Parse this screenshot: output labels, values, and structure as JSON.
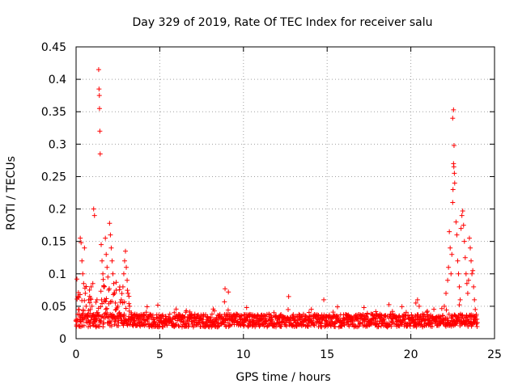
{
  "chart_data": {
    "type": "scatter",
    "title": "Day 329 of 2019, Rate Of TEC Index for receiver salu",
    "xlabel": "GPS time / hours",
    "ylabel": "ROTI / TECUs",
    "xlim": [
      0,
      25
    ],
    "ylim": [
      0,
      0.45
    ],
    "x_ticks": [
      0,
      5,
      10,
      15,
      20,
      25
    ],
    "y_ticks": [
      0,
      0.05,
      0.1,
      0.15,
      0.2,
      0.25,
      0.3,
      0.35,
      0.4,
      0.45
    ],
    "x_tick_labels": [
      "0",
      "5",
      "10",
      "15",
      "20",
      "25"
    ],
    "y_tick_labels": [
      "0",
      "0.05",
      "0.1",
      "0.15",
      "0.2",
      "0.25",
      "0.3",
      "0.35",
      "0.4",
      "0.45"
    ],
    "grid": true,
    "marker": "+",
    "color": "#ff0000",
    "series": [
      {
        "name": "ROTI",
        "points": [
          [
            0.05,
            0.092
          ],
          [
            0.1,
            0.065
          ],
          [
            0.15,
            0.045
          ],
          [
            0.2,
            0.03
          ],
          [
            0.25,
            0.155
          ],
          [
            0.3,
            0.148
          ],
          [
            0.35,
            0.12
          ],
          [
            0.4,
            0.1
          ],
          [
            0.45,
            0.085
          ],
          [
            0.5,
            0.14
          ],
          [
            0.55,
            0.07
          ],
          [
            0.6,
            0.05
          ],
          [
            0.65,
            0.035
          ],
          [
            0.7,
            0.025
          ],
          [
            0.75,
            0.06
          ],
          [
            0.8,
            0.075
          ],
          [
            0.85,
            0.045
          ],
          [
            0.9,
            0.08
          ],
          [
            0.95,
            0.05
          ],
          [
            1.0,
            0.085
          ],
          [
            1.05,
            0.2
          ],
          [
            1.1,
            0.19
          ],
          [
            1.15,
            0.03
          ],
          [
            1.2,
            0.018
          ],
          [
            1.25,
            0.06
          ],
          [
            1.3,
            0.04
          ],
          [
            1.35,
            0.415
          ],
          [
            1.37,
            0.385
          ],
          [
            1.39,
            0.375
          ],
          [
            1.4,
            0.355
          ],
          [
            1.42,
            0.32
          ],
          [
            1.44,
            0.285
          ],
          [
            1.5,
            0.145
          ],
          [
            1.55,
            0.12
          ],
          [
            1.6,
            0.1
          ],
          [
            1.65,
            0.08
          ],
          [
            1.7,
            0.06
          ],
          [
            1.75,
            0.155
          ],
          [
            1.8,
            0.13
          ],
          [
            1.85,
            0.11
          ],
          [
            1.9,
            0.095
          ],
          [
            1.95,
            0.075
          ],
          [
            2.0,
            0.178
          ],
          [
            2.05,
            0.16
          ],
          [
            2.1,
            0.14
          ],
          [
            2.15,
            0.12
          ],
          [
            2.2,
            0.1
          ],
          [
            2.25,
            0.085
          ],
          [
            2.3,
            0.07
          ],
          [
            2.35,
            0.055
          ],
          [
            2.4,
            0.045
          ],
          [
            2.45,
            0.035
          ],
          [
            2.5,
            0.05
          ],
          [
            2.6,
            0.04
          ],
          [
            2.7,
            0.06
          ],
          [
            2.8,
            0.08
          ],
          [
            2.85,
            0.1
          ],
          [
            2.9,
            0.12
          ],
          [
            2.95,
            0.135
          ],
          [
            3.0,
            0.11
          ],
          [
            3.05,
            0.09
          ],
          [
            3.1,
            0.07
          ],
          [
            3.2,
            0.05
          ],
          [
            3.3,
            0.04
          ],
          [
            8.9,
            0.077
          ],
          [
            9.1,
            0.072
          ],
          [
            12.7,
            0.065
          ],
          [
            14.8,
            0.06
          ],
          [
            17.2,
            0.048
          ],
          [
            18.9,
            0.042
          ],
          [
            20.3,
            0.055
          ],
          [
            20.4,
            0.06
          ],
          [
            20.5,
            0.05
          ],
          [
            22.0,
            0.05
          ],
          [
            22.1,
            0.07
          ],
          [
            22.2,
            0.09
          ],
          [
            22.25,
            0.11
          ],
          [
            22.3,
            0.165
          ],
          [
            22.35,
            0.14
          ],
          [
            22.4,
            0.1
          ],
          [
            22.45,
            0.13
          ],
          [
            22.5,
            0.21
          ],
          [
            22.52,
            0.23
          ],
          [
            22.55,
            0.27
          ],
          [
            22.57,
            0.265
          ],
          [
            22.6,
            0.255
          ],
          [
            22.62,
            0.24
          ],
          [
            22.58,
            0.298
          ],
          [
            22.5,
            0.34
          ],
          [
            22.55,
            0.353
          ],
          [
            22.7,
            0.18
          ],
          [
            22.75,
            0.16
          ],
          [
            22.8,
            0.12
          ],
          [
            22.85,
            0.1
          ],
          [
            22.9,
            0.08
          ],
          [
            22.95,
            0.06
          ],
          [
            23.0,
            0.17
          ],
          [
            23.05,
            0.19
          ],
          [
            23.1,
            0.197
          ],
          [
            23.15,
            0.175
          ],
          [
            23.2,
            0.15
          ],
          [
            23.25,
            0.125
          ],
          [
            23.3,
            0.1
          ],
          [
            23.35,
            0.085
          ],
          [
            23.4,
            0.07
          ],
          [
            23.45,
            0.09
          ],
          [
            23.5,
            0.155
          ],
          [
            23.55,
            0.14
          ],
          [
            23.6,
            0.12
          ],
          [
            23.65,
            0.1
          ],
          [
            23.7,
            0.105
          ],
          [
            23.75,
            0.08
          ],
          [
            23.8,
            0.06
          ],
          [
            23.85,
            0.045
          ],
          [
            23.9,
            0.035
          ],
          [
            23.95,
            0.03
          ]
        ],
        "band": {
          "x_start": 0.0,
          "x_end": 23.95,
          "x_step": 0.05,
          "baseline": 0.018,
          "spread": 0.02,
          "early_morning_extra": 0.06,
          "early_morning_end": 3.2
        }
      }
    ]
  }
}
